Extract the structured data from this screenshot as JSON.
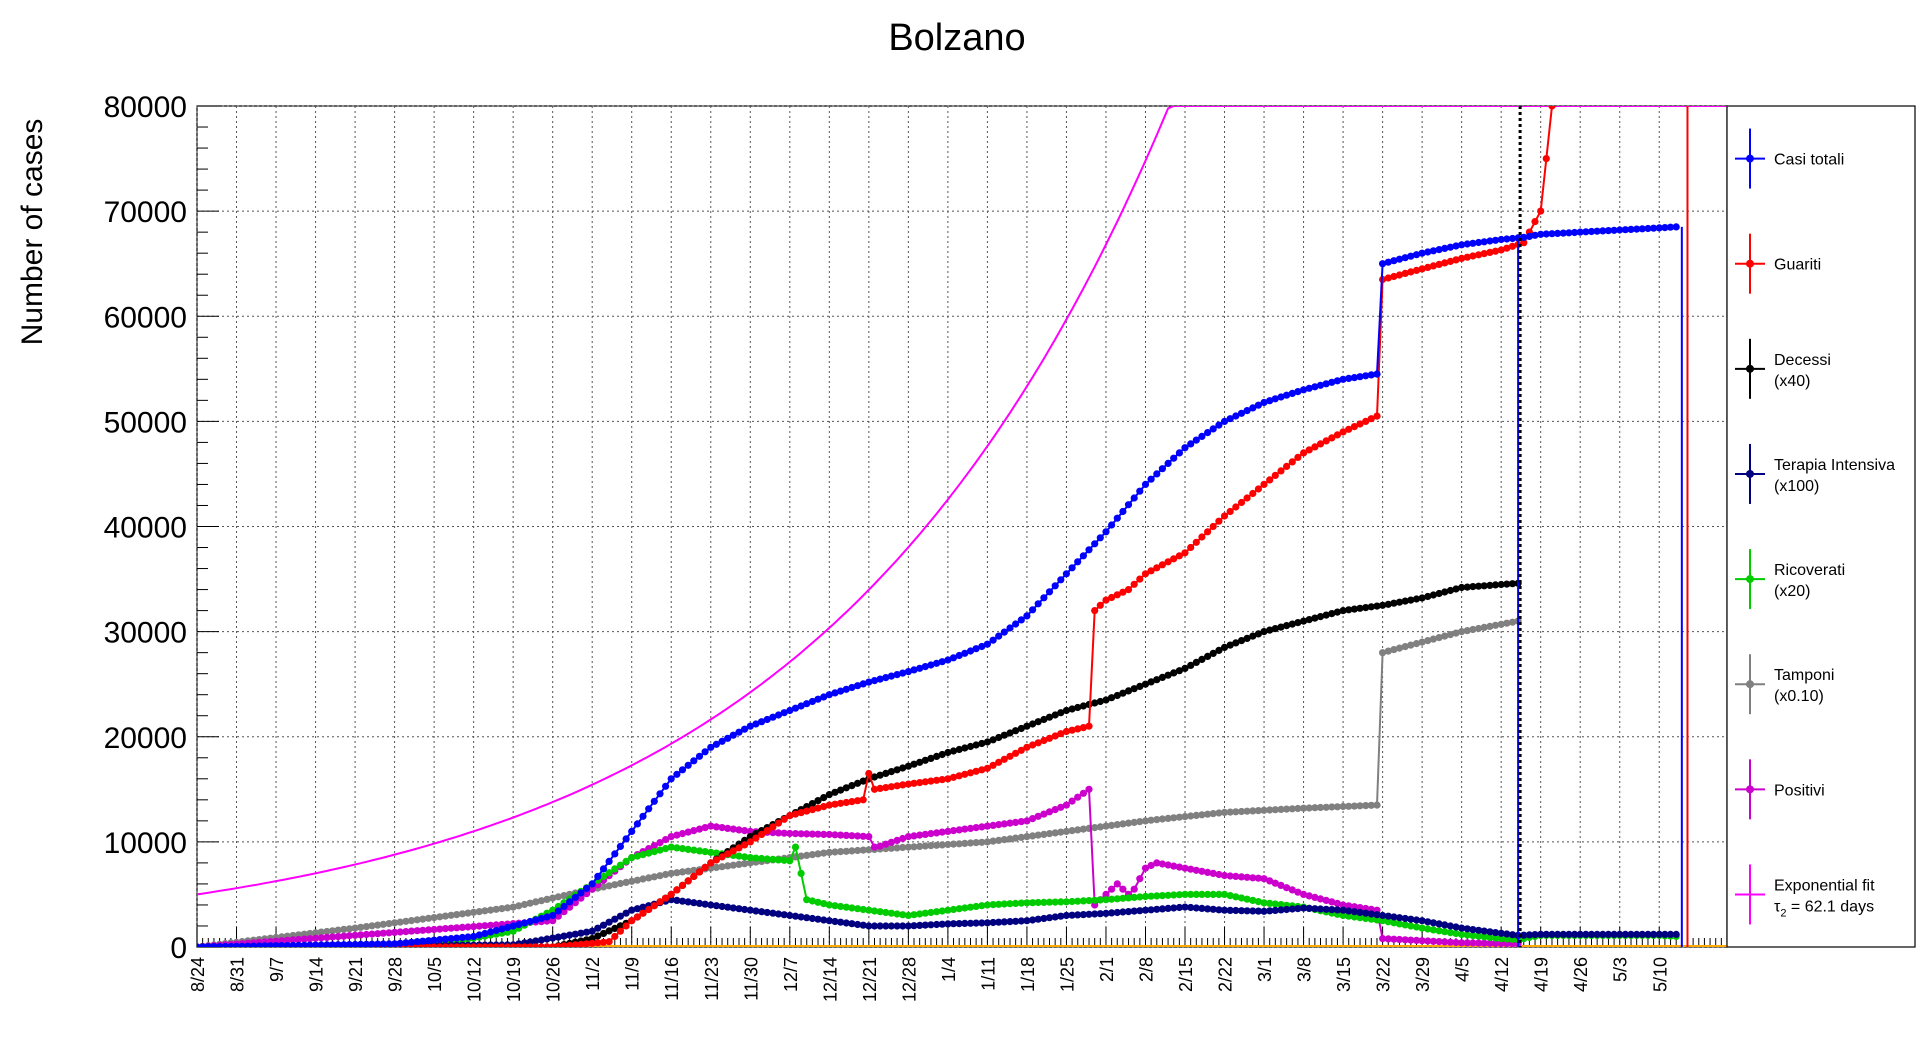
{
  "chart_data": {
    "type": "line",
    "title": "Bolzano",
    "ylabel": "Number of cases",
    "xlabel": "",
    "ylim": [
      0,
      80000
    ],
    "y_ticks": [
      0,
      10000,
      20000,
      30000,
      40000,
      50000,
      60000,
      70000,
      80000
    ],
    "y_tick_labels": [
      "0",
      "10000",
      "20000",
      "30000",
      "40000",
      "50000",
      "60000",
      "70000",
      "80000"
    ],
    "grid": true,
    "legend_position": "right",
    "x_start": "2020-08-24",
    "x_range_days": [
      0,
      271
    ],
    "x_tick_labels": [
      "8/24",
      "8/31",
      "9/7",
      "9/14",
      "9/21",
      "9/28",
      "10/5",
      "10/12",
      "10/19",
      "10/26",
      "11/2",
      "11/9",
      "11/16",
      "11/23",
      "11/30",
      "12/7",
      "12/14",
      "12/21",
      "12/28",
      "1/4",
      "1/11",
      "1/18",
      "1/25",
      "2/1",
      "2/8",
      "2/15",
      "2/22",
      "3/1",
      "3/8",
      "3/15",
      "3/22",
      "3/29",
      "4/5",
      "4/12",
      "4/19",
      "4/26",
      "5/3",
      "5/10"
    ],
    "vertical_marker_date": "4/15",
    "series": [
      {
        "name": "Casi totali",
        "color": "#0000ff",
        "x": [
          "8/24",
          "9/28",
          "10/12",
          "10/26",
          "11/2",
          "11/9",
          "11/16",
          "11/23",
          "11/30",
          "12/7",
          "12/14",
          "12/21",
          "12/28",
          "1/4",
          "1/11",
          "1/18",
          "1/25",
          "2/1",
          "2/8",
          "2/15",
          "2/22",
          "3/1",
          "3/8",
          "3/15",
          "3/21",
          "3/22",
          "3/29",
          "4/5",
          "4/12",
          "4/16",
          "4/19",
          "4/26",
          "5/3",
          "5/10",
          "5/13"
        ],
        "values": [
          0,
          300,
          1000,
          3000,
          6000,
          11000,
          16000,
          19000,
          21000,
          22500,
          24000,
          25200,
          26200,
          27300,
          28800,
          31500,
          35500,
          39500,
          44000,
          47500,
          50000,
          51800,
          53000,
          54000,
          54500,
          65000,
          66000,
          66800,
          67300,
          67500,
          67800,
          68000,
          68200,
          68400,
          68500
        ]
      },
      {
        "name": "Guariti",
        "color": "#ff0000",
        "x": [
          "8/24",
          "10/26",
          "11/5",
          "11/9",
          "11/16",
          "11/23",
          "11/30",
          "12/7",
          "12/14",
          "12/20",
          "12/21",
          "12/22",
          "12/28",
          "1/4",
          "1/11",
          "1/18",
          "1/25",
          "1/29",
          "1/30",
          "2/1",
          "2/5",
          "2/8",
          "2/15",
          "2/22",
          "3/1",
          "3/8",
          "3/15",
          "3/21",
          "3/22",
          "3/29",
          "4/5",
          "4/12",
          "4/16",
          "4/19",
          "4/21"
        ],
        "values": [
          0,
          0,
          500,
          2500,
          5000,
          8000,
          10000,
          12500,
          13500,
          14000,
          16500,
          15000,
          15500,
          16000,
          17000,
          19000,
          20500,
          21000,
          32000,
          33000,
          34000,
          35500,
          37500,
          41000,
          44000,
          47000,
          49000,
          50500,
          63500,
          64500,
          65500,
          66300,
          67000,
          70000,
          80000
        ]
      },
      {
        "name": "Decessi",
        "color": "#000000",
        "x": [
          "8/24",
          "10/26",
          "11/2",
          "11/9",
          "11/16",
          "11/23",
          "11/30",
          "12/7",
          "12/14",
          "12/21",
          "12/28",
          "1/4",
          "1/11",
          "1/18",
          "1/25",
          "2/1",
          "2/8",
          "2/15",
          "2/22",
          "3/1",
          "3/8",
          "3/15",
          "3/22",
          "3/29",
          "4/5",
          "4/15"
        ],
        "values": [
          0,
          0,
          800,
          2500,
          5000,
          8000,
          10500,
          12500,
          14500,
          16000,
          17200,
          18500,
          19500,
          21000,
          22500,
          23500,
          25000,
          26500,
          28500,
          30000,
          31000,
          32000,
          32500,
          33200,
          34200,
          34600
        ]
      },
      {
        "name": "Terapia Intensiva",
        "color": "#000080",
        "x": [
          "8/24",
          "10/19",
          "11/2",
          "11/9",
          "11/16",
          "11/23",
          "11/30",
          "12/7",
          "12/14",
          "12/21",
          "12/28",
          "1/4",
          "1/11",
          "1/18",
          "1/25",
          "2/1",
          "2/8",
          "2/15",
          "2/22",
          "3/1",
          "3/8",
          "3/15",
          "3/22",
          "3/29",
          "4/5",
          "4/12",
          "4/15",
          "4/19",
          "5/10",
          "5/13"
        ],
        "values": [
          0,
          200,
          1500,
          3500,
          4500,
          4000,
          3500,
          3000,
          2500,
          2000,
          2000,
          2200,
          2300,
          2500,
          3000,
          3200,
          3500,
          3800,
          3500,
          3400,
          3700,
          3500,
          3000,
          2500,
          1800,
          1300,
          1100,
          1200,
          1200,
          1200
        ]
      },
      {
        "name": "Ricoverati",
        "color": "#00cc00",
        "x": [
          "8/24",
          "10/5",
          "10/19",
          "10/26",
          "11/2",
          "11/9",
          "11/16",
          "11/23",
          "11/30",
          "12/7",
          "12/8",
          "12/10",
          "12/14",
          "12/21",
          "12/28",
          "1/4",
          "1/11",
          "1/18",
          "1/25",
          "2/1",
          "2/8",
          "2/15",
          "2/22",
          "3/1",
          "3/8",
          "3/15",
          "3/22",
          "3/29",
          "4/5",
          "4/12",
          "4/15",
          "4/19",
          "5/10",
          "5/13"
        ],
        "values": [
          0,
          200,
          1500,
          3500,
          6000,
          8500,
          9500,
          9000,
          8500,
          8200,
          9500,
          4500,
          4000,
          3500,
          3000,
          3500,
          4000,
          4200,
          4300,
          4500,
          4800,
          5000,
          5000,
          4200,
          3800,
          3000,
          2500,
          1800,
          1200,
          800,
          700,
          1100,
          1100,
          1000
        ]
      },
      {
        "name": "Tamponi",
        "color": "#808080",
        "x": [
          "8/24",
          "9/7",
          "9/21",
          "10/5",
          "10/19",
          "11/2",
          "11/16",
          "11/30",
          "12/14",
          "12/28",
          "1/11",
          "1/25",
          "2/8",
          "2/22",
          "3/8",
          "3/21",
          "3/22",
          "3/29",
          "4/5",
          "4/15"
        ],
        "values": [
          0,
          900,
          1800,
          2800,
          3800,
          5500,
          7000,
          8000,
          9000,
          9500,
          10000,
          11000,
          12000,
          12800,
          13200,
          13500,
          28000,
          29000,
          30000,
          31000
        ]
      },
      {
        "name": "Positivi",
        "color": "#cc00cc",
        "x": [
          "8/24",
          "10/26",
          "11/2",
          "11/9",
          "11/16",
          "11/23",
          "11/30",
          "12/7",
          "12/14",
          "12/21",
          "12/22",
          "12/23",
          "12/28",
          "1/4",
          "1/11",
          "1/18",
          "1/25",
          "1/29",
          "1/30",
          "2/3",
          "2/5",
          "2/6",
          "2/8",
          "2/10",
          "2/15",
          "2/22",
          "3/1",
          "3/8",
          "3/15",
          "3/21",
          "3/22",
          "3/29",
          "4/5",
          "4/15"
        ],
        "values": [
          0,
          2500,
          5500,
          8500,
          10500,
          11500,
          11000,
          10800,
          10700,
          10500,
          9500,
          9600,
          10500,
          11000,
          11500,
          12000,
          13500,
          15000,
          4000,
          6000,
          5000,
          5500,
          7500,
          8000,
          7500,
          6800,
          6500,
          5000,
          4000,
          3500,
          800,
          600,
          400,
          300
        ]
      }
    ],
    "fit": {
      "name": "Exponential fit",
      "label_prefix": "τ",
      "label_sub": "2",
      "label_suffix": " = 62.1 days",
      "color": "#ff00ff",
      "tau_days": 62.1,
      "y0": 5000,
      "x_end_days": 271
    },
    "baseline": {
      "name": "",
      "color": "#ffaa00",
      "value": 0
    },
    "legend": [
      {
        "label": "Casi totali",
        "sub": "",
        "color": "#0000ff"
      },
      {
        "label": "Guariti",
        "sub": "",
        "color": "#ff0000"
      },
      {
        "label": "Decessi",
        "sub": "(x40)",
        "color": "#000000"
      },
      {
        "label": "Terapia Intensiva",
        "sub": "(x100)",
        "color": "#000080"
      },
      {
        "label": "Ricoverati",
        "sub": "(x20)",
        "color": "#00cc00"
      },
      {
        "label": "Tamponi",
        "sub": "(x0.10)",
        "color": "#808080"
      },
      {
        "label": "Positivi",
        "sub": "",
        "color": "#cc00cc"
      },
      {
        "label": "Exponential fit",
        "sub": "",
        "color": "#ff00ff"
      }
    ]
  }
}
